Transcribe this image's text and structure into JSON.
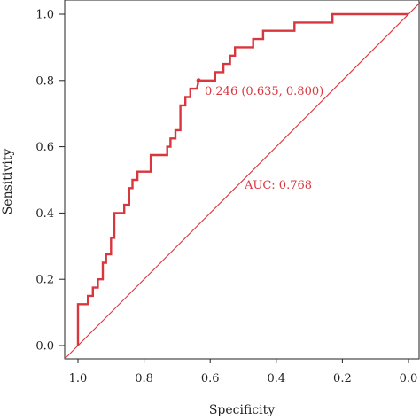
{
  "chart_data": {
    "type": "line",
    "title": "",
    "xlabel": "Specificity",
    "ylabel": "Sensitivity",
    "xlim": [
      1.0,
      0.0
    ],
    "ylim": [
      0.0,
      1.0
    ],
    "x_reversed": true,
    "grid": false,
    "legend": "none",
    "xticks": [
      1.0,
      0.8,
      0.6,
      0.4,
      0.2,
      0.0
    ],
    "xtick_labels": [
      "1.0",
      "0.8",
      "0.6",
      "0.4",
      "0.2",
      "0.0"
    ],
    "yticks": [
      0.0,
      0.2,
      0.4,
      0.6,
      0.8,
      1.0
    ],
    "ytick_labels": [
      "0.0",
      "0.2",
      "0.4",
      "0.6",
      "0.8",
      "1.0"
    ],
    "color": "#d9363e",
    "series": [
      {
        "specificity": [
          1.0,
          1.0,
          0.97,
          0.97,
          0.955,
          0.955,
          0.94,
          0.94,
          0.925,
          0.925,
          0.915,
          0.915,
          0.9,
          0.9,
          0.89,
          0.89,
          0.86,
          0.86,
          0.845,
          0.845,
          0.835,
          0.835,
          0.82,
          0.82,
          0.78,
          0.78,
          0.73,
          0.73,
          0.72,
          0.72,
          0.705,
          0.705,
          0.69,
          0.69,
          0.675,
          0.675,
          0.66,
          0.66,
          0.64,
          0.635,
          0.635,
          0.585,
          0.585,
          0.56,
          0.56,
          0.54,
          0.54,
          0.525,
          0.525,
          0.505,
          0.505,
          0.47,
          0.47,
          0.44,
          0.44,
          0.4,
          0.4,
          0.345,
          0.345,
          0.23,
          0.23,
          0.0
        ],
        "sensitivity": [
          0.0,
          0.125,
          0.125,
          0.15,
          0.15,
          0.175,
          0.175,
          0.2,
          0.2,
          0.25,
          0.25,
          0.275,
          0.275,
          0.325,
          0.325,
          0.4,
          0.4,
          0.425,
          0.425,
          0.475,
          0.475,
          0.5,
          0.5,
          0.525,
          0.525,
          0.575,
          0.575,
          0.6,
          0.6,
          0.625,
          0.625,
          0.65,
          0.65,
          0.725,
          0.725,
          0.75,
          0.75,
          0.775,
          0.775,
          0.8,
          0.8,
          0.8,
          0.825,
          0.825,
          0.85,
          0.85,
          0.875,
          0.875,
          0.9,
          0.9,
          0.9,
          0.9,
          0.925,
          0.925,
          0.95,
          0.95,
          0.95,
          0.95,
          0.975,
          0.975,
          1.0,
          1.0
        ]
      }
    ],
    "reference_line": {
      "from": [
        1.0,
        0.0
      ],
      "to": [
        0.0,
        1.0
      ]
    },
    "threshold_point": {
      "specificity": 0.635,
      "sensitivity": 0.8
    },
    "annotations": {
      "threshold": "0.246 (0.635, 0.800)",
      "auc": "AUC: 0.768"
    }
  }
}
